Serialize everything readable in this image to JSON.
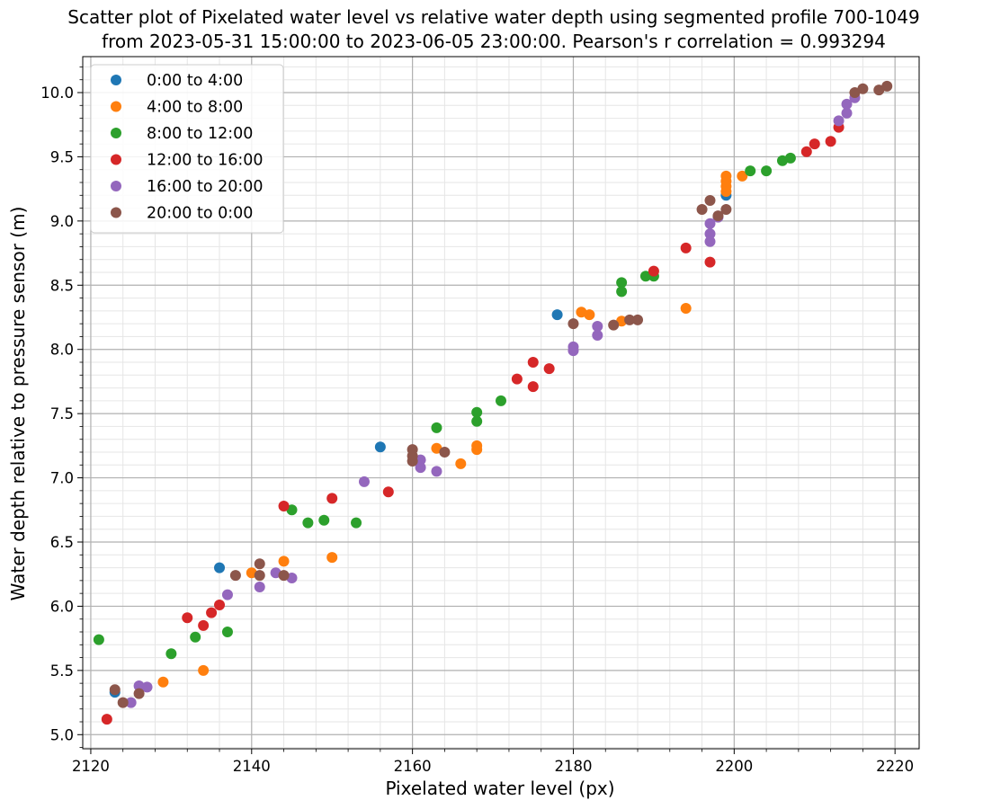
{
  "chart_data": {
    "type": "scatter",
    "title_lines": [
      "Scatter plot of Pixelated water level vs relative water depth using segmented profile 700-1049",
      "from 2023-05-31 15:00:00 to 2023-06-05 23:00:00. Pearson's r correlation = 0.993294"
    ],
    "xlabel": "Pixelated water level (px)",
    "ylabel": "Water depth relative to pressure sensor (m)",
    "xlim": [
      2119,
      2223
    ],
    "ylim": [
      4.89,
      10.28
    ],
    "x_major_ticks": [
      2120,
      2140,
      2160,
      2180,
      2200,
      2220
    ],
    "y_major_ticks": [
      5.0,
      5.5,
      6.0,
      6.5,
      7.0,
      7.5,
      8.0,
      8.5,
      9.0,
      9.5,
      10.0
    ],
    "x_tick_labels": [
      "2120",
      "2140",
      "2160",
      "2180",
      "2200",
      "2220"
    ],
    "y_tick_labels": [
      "5.0",
      "5.5",
      "6.0",
      "6.5",
      "7.0",
      "7.5",
      "8.0",
      "8.5",
      "9.0",
      "9.5",
      "10.0"
    ],
    "x_minor_step": 4,
    "y_minor_step": 0.1,
    "grid": true,
    "legend_position": "top-left",
    "series": [
      {
        "name": "0:00 to 4:00",
        "color": "#1f77b4",
        "points": [
          [
            2123,
            5.33
          ],
          [
            2136,
            6.3
          ],
          [
            2156,
            7.24
          ],
          [
            2178,
            8.27
          ],
          [
            2199,
            9.2
          ]
        ]
      },
      {
        "name": "4:00 to 8:00",
        "color": "#ff7f0e",
        "points": [
          [
            2129,
            5.41
          ],
          [
            2134,
            5.5
          ],
          [
            2140,
            6.26
          ],
          [
            2144,
            6.35
          ],
          [
            2150,
            6.38
          ],
          [
            2163,
            7.23
          ],
          [
            2166,
            7.11
          ],
          [
            2168,
            7.22
          ],
          [
            2168,
            7.25
          ],
          [
            2181,
            8.29
          ],
          [
            2182,
            8.27
          ],
          [
            2186,
            8.22
          ],
          [
            2194,
            8.32
          ],
          [
            2199,
            9.23
          ],
          [
            2199,
            9.27
          ],
          [
            2199,
            9.31
          ],
          [
            2199,
            9.35
          ],
          [
            2201,
            9.35
          ]
        ]
      },
      {
        "name": "8:00 to 12:00",
        "color": "#2ca02c",
        "points": [
          [
            2121,
            5.74
          ],
          [
            2130,
            5.63
          ],
          [
            2133,
            5.76
          ],
          [
            2137,
            5.8
          ],
          [
            2145,
            6.75
          ],
          [
            2147,
            6.65
          ],
          [
            2149,
            6.67
          ],
          [
            2153,
            6.65
          ],
          [
            2163,
            7.39
          ],
          [
            2168,
            7.44
          ],
          [
            2168,
            7.51
          ],
          [
            2171,
            7.6
          ],
          [
            2186,
            8.45
          ],
          [
            2186,
            8.52
          ],
          [
            2189,
            8.57
          ],
          [
            2190,
            8.57
          ],
          [
            2202,
            9.39
          ],
          [
            2204,
            9.39
          ],
          [
            2206,
            9.47
          ],
          [
            2207,
            9.49
          ]
        ]
      },
      {
        "name": "12:00 to 16:00",
        "color": "#d62728",
        "points": [
          [
            2122,
            5.12
          ],
          [
            2132,
            5.91
          ],
          [
            2134,
            5.85
          ],
          [
            2135,
            5.95
          ],
          [
            2136,
            6.01
          ],
          [
            2144,
            6.78
          ],
          [
            2150,
            6.84
          ],
          [
            2157,
            6.89
          ],
          [
            2173,
            7.77
          ],
          [
            2175,
            7.71
          ],
          [
            2175,
            7.9
          ],
          [
            2177,
            7.85
          ],
          [
            2190,
            8.61
          ],
          [
            2194,
            8.79
          ],
          [
            2197,
            8.68
          ],
          [
            2209,
            9.54
          ],
          [
            2210,
            9.6
          ],
          [
            2212,
            9.62
          ],
          [
            2213,
            9.73
          ]
        ]
      },
      {
        "name": "16:00 to 20:00",
        "color": "#9467bd",
        "points": [
          [
            2125,
            5.25
          ],
          [
            2126,
            5.38
          ],
          [
            2127,
            5.37
          ],
          [
            2137,
            6.09
          ],
          [
            2141,
            6.15
          ],
          [
            2143,
            6.26
          ],
          [
            2145,
            6.22
          ],
          [
            2154,
            6.97
          ],
          [
            2161,
            7.08
          ],
          [
            2161,
            7.14
          ],
          [
            2163,
            7.05
          ],
          [
            2180,
            7.99
          ],
          [
            2180,
            8.02
          ],
          [
            2183,
            8.11
          ],
          [
            2183,
            8.18
          ],
          [
            2197,
            8.84
          ],
          [
            2197,
            8.9
          ],
          [
            2197,
            8.98
          ],
          [
            2198,
            9.03
          ],
          [
            2213,
            9.78
          ],
          [
            2214,
            9.84
          ],
          [
            2214,
            9.91
          ],
          [
            2215,
            9.96
          ]
        ]
      },
      {
        "name": "20:00 to 0:00",
        "color": "#8c564b",
        "points": [
          [
            2123,
            5.35
          ],
          [
            2124,
            5.25
          ],
          [
            2126,
            5.32
          ],
          [
            2138,
            6.24
          ],
          [
            2141,
            6.24
          ],
          [
            2141,
            6.33
          ],
          [
            2144,
            6.24
          ],
          [
            2160,
            7.13
          ],
          [
            2160,
            7.17
          ],
          [
            2160,
            7.22
          ],
          [
            2164,
            7.2
          ],
          [
            2180,
            8.2
          ],
          [
            2185,
            8.19
          ],
          [
            2187,
            8.23
          ],
          [
            2188,
            8.23
          ],
          [
            2196,
            9.09
          ],
          [
            2197,
            9.16
          ],
          [
            2198,
            9.04
          ],
          [
            2199,
            9.09
          ],
          [
            2215,
            10.0
          ],
          [
            2216,
            10.03
          ],
          [
            2218,
            10.02
          ],
          [
            2219,
            10.05
          ]
        ]
      }
    ]
  }
}
